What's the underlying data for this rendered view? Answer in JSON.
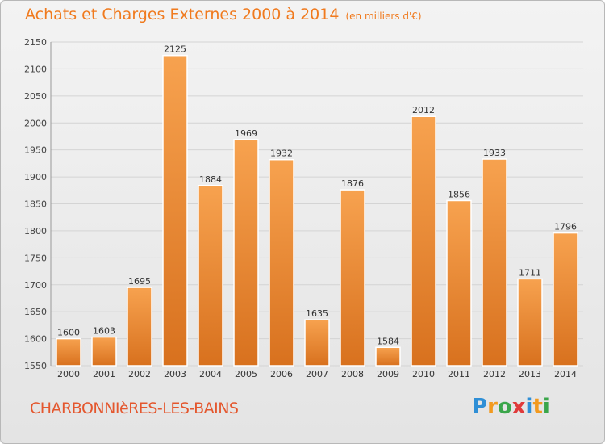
{
  "header": {
    "title": "Achats et Charges Externes 2000 à 2014",
    "subtitle": "(en milliers d'€)"
  },
  "footer": {
    "town": "CHARBONNIèRES-LES-BAINS",
    "logo_text": "Proxiti"
  },
  "colors": {
    "title": "#f07a1e",
    "town": "#e4572e",
    "bar_light": "#f7a24f",
    "bar_dark": "#d8711e"
  },
  "chart_data": {
    "type": "bar",
    "categories": [
      "2000",
      "2001",
      "2002",
      "2003",
      "2004",
      "2005",
      "2006",
      "2007",
      "2008",
      "2009",
      "2010",
      "2011",
      "2012",
      "2013",
      "2014"
    ],
    "values": [
      1600,
      1603,
      1695,
      2125,
      1884,
      1969,
      1932,
      1635,
      1876,
      1584,
      2012,
      1856,
      1933,
      1711,
      1796
    ],
    "ylim": [
      1550,
      2150
    ],
    "yticks": [
      1550,
      1600,
      1650,
      1700,
      1750,
      1800,
      1850,
      1900,
      1950,
      2000,
      2050,
      2100,
      2150
    ],
    "grid": true,
    "title": "Achats et Charges Externes 2000 à 2014",
    "xlabel": "",
    "ylabel": ""
  }
}
